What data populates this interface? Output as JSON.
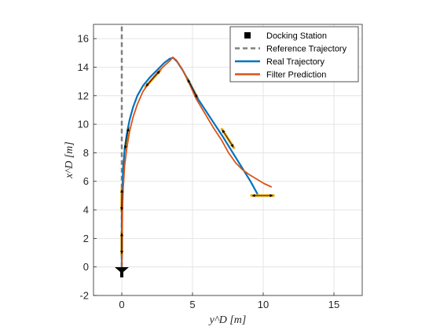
{
  "chart_data": {
    "type": "line",
    "xlabel": "y^D [m]",
    "ylabel": "x^D [m]",
    "xlim": [
      -2,
      17
    ],
    "ylim": [
      -2,
      17
    ],
    "xticks": [
      0,
      5,
      10,
      15
    ],
    "yticks": [
      -2,
      0,
      2,
      4,
      6,
      8,
      10,
      12,
      14,
      16
    ],
    "grid": true,
    "legend": {
      "placement": "top-right",
      "entries": [
        "Docking Station",
        "Reference Trajectory",
        "Real Trajectory",
        "Filter Prediction"
      ]
    },
    "colors": {
      "docking": "#000000",
      "reference": "#808080",
      "real": "#0072BD",
      "filter": "#D95319",
      "uncertainty": "#EDB120"
    },
    "series": [
      {
        "name": "Docking Station",
        "style": "marker",
        "points": [
          [
            0,
            -0.35
          ]
        ]
      },
      {
        "name": "Reference Trajectory",
        "style": "dashed",
        "x": [
          0,
          0
        ],
        "y": [
          0,
          17
        ]
      },
      {
        "name": "Real Trajectory",
        "style": "solid",
        "x": [
          0,
          0,
          0.05,
          0.1,
          0.2,
          0.35,
          0.55,
          0.8,
          1.1,
          1.5,
          2.0,
          2.5,
          3.0,
          3.4,
          3.65,
          3.9,
          4.3,
          4.8,
          5.3,
          5.9,
          6.5,
          7.1,
          7.6,
          8.1,
          8.6,
          9.1,
          9.6
        ],
        "y": [
          0,
          4,
          5.5,
          7.0,
          8.2,
          9.3,
          10.3,
          11.2,
          12.0,
          12.7,
          13.3,
          13.8,
          14.3,
          14.6,
          14.65,
          14.4,
          13.8,
          12.9,
          11.9,
          11.0,
          10.1,
          9.2,
          8.4,
          7.6,
          6.8,
          6.0,
          5.1
        ],
        "uncertainty_crosses": [
          [
            0,
            1.65
          ],
          [
            0,
            4.7
          ],
          [
            0.35,
            9.0
          ],
          [
            2.2,
            13.2
          ],
          [
            5.0,
            12.5
          ],
          [
            7.5,
            9.0
          ]
        ]
      },
      {
        "name": "Filter Prediction",
        "style": "solid",
        "x": [
          0,
          0.05,
          0.1,
          0.2,
          0.35,
          0.55,
          0.8,
          1.1,
          1.5,
          2.0,
          2.5,
          3.0,
          3.4,
          3.6,
          3.85,
          4.25,
          4.75,
          5.25,
          5.85,
          6.45,
          7.05,
          7.55,
          8.05,
          8.55,
          9.05,
          9.55,
          10.05,
          10.6
        ],
        "y": [
          0,
          4,
          5.5,
          7.1,
          8.3,
          9.5,
          10.5,
          11.4,
          12.3,
          13.0,
          13.6,
          14.1,
          14.45,
          14.7,
          14.5,
          13.9,
          12.9,
          11.8,
          10.8,
          9.8,
          8.9,
          8.0,
          7.3,
          6.8,
          6.45,
          6.15,
          5.85,
          5.6
        ],
        "uncertainty_crosses": [
          [
            9.95,
            5.0
          ]
        ]
      }
    ]
  }
}
